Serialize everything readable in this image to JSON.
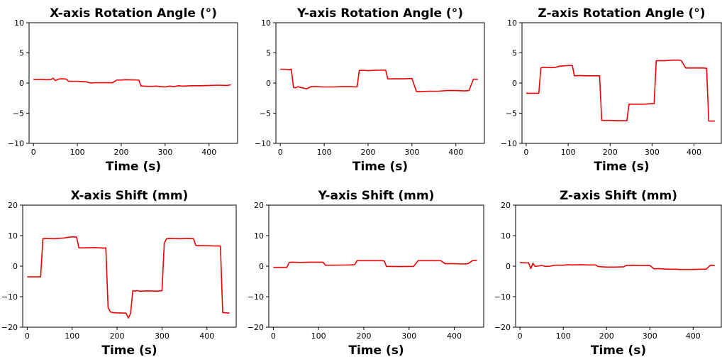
{
  "colors": {
    "series": "#ee0000",
    "axes": "#000000",
    "background": "#ffffff"
  },
  "chart_data": [
    {
      "type": "line",
      "title": "X-axis Rotation Angle (°)",
      "xlabel": "Time (s)",
      "ylabel": "",
      "xlim": [
        -10,
        465
      ],
      "ylim": [
        -10,
        10
      ],
      "xticks": [
        0,
        100,
        200,
        300,
        400
      ],
      "yticks": [
        -10,
        -5,
        0,
        5,
        10
      ],
      "ytick_labels": [
        "−10",
        "−5",
        "0",
        "5",
        "10"
      ],
      "grid": false,
      "series": [
        {
          "x": [
            0,
            10,
            20,
            30,
            40,
            45,
            50,
            55,
            60,
            70,
            75,
            80,
            100,
            110,
            120,
            130,
            140,
            160,
            180,
            190,
            200,
            210,
            240,
            245,
            250,
            260,
            270,
            280,
            290,
            300,
            310,
            320,
            330,
            340,
            360,
            380,
            400,
            420,
            440,
            450
          ],
          "y": [
            0.6,
            0.6,
            0.6,
            0.55,
            0.6,
            0.8,
            0.4,
            0.6,
            0.7,
            0.7,
            0.65,
            0.3,
            0.3,
            0.25,
            0.2,
            0.0,
            0.05,
            0.05,
            0.05,
            0.5,
            0.5,
            0.55,
            0.5,
            -0.5,
            -0.5,
            -0.55,
            -0.55,
            -0.5,
            -0.6,
            -0.65,
            -0.5,
            -0.6,
            -0.45,
            -0.5,
            -0.45,
            -0.45,
            -0.4,
            -0.35,
            -0.4,
            -0.3
          ]
        }
      ]
    },
    {
      "type": "line",
      "title": "Y-axis Rotation Angle (°)",
      "xlabel": "Time (s)",
      "ylabel": "",
      "xlim": [
        -10,
        465
      ],
      "ylim": [
        -10,
        10
      ],
      "xticks": [
        0,
        100,
        200,
        300,
        400
      ],
      "yticks": [
        -10,
        -5,
        0,
        5,
        10
      ],
      "ytick_labels": [
        "−10",
        "−5",
        "0",
        "5",
        "10"
      ],
      "grid": false,
      "series": [
        {
          "x": [
            0,
            10,
            20,
            25,
            30,
            35,
            40,
            50,
            60,
            70,
            80,
            100,
            120,
            140,
            160,
            175,
            180,
            190,
            200,
            210,
            240,
            245,
            260,
            280,
            300,
            310,
            320,
            340,
            360,
            380,
            400,
            420,
            430,
            440,
            450
          ],
          "y": [
            2.3,
            2.3,
            2.2,
            2.3,
            -0.7,
            -0.8,
            -0.6,
            -0.8,
            -0.95,
            -0.6,
            -0.6,
            -0.65,
            -0.65,
            -0.6,
            -0.6,
            -0.65,
            2.1,
            2.1,
            2.05,
            2.1,
            2.15,
            0.7,
            0.7,
            0.7,
            0.75,
            -1.4,
            -1.4,
            -1.35,
            -1.35,
            -1.25,
            -1.25,
            -1.3,
            -1.25,
            0.65,
            0.6
          ]
        }
      ]
    },
    {
      "type": "line",
      "title": "Z-axis Rotation Angle (°)",
      "xlabel": "Time (s)",
      "ylabel": "",
      "xlim": [
        -10,
        465
      ],
      "ylim": [
        -10,
        10
      ],
      "xticks": [
        0,
        100,
        200,
        300,
        400
      ],
      "yticks": [
        -10,
        -5,
        0,
        5,
        10
      ],
      "ytick_labels": [
        "−10",
        "−5",
        "0",
        "5",
        "10"
      ],
      "grid": false,
      "series": [
        {
          "x": [
            0,
            10,
            20,
            30,
            35,
            40,
            60,
            70,
            80,
            100,
            110,
            115,
            130,
            140,
            150,
            170,
            175,
            180,
            200,
            220,
            240,
            245,
            260,
            280,
            300,
            305,
            310,
            330,
            350,
            365,
            370,
            380,
            400,
            420,
            430,
            435,
            450
          ],
          "y": [
            -1.7,
            -1.7,
            -1.7,
            -1.7,
            2.5,
            2.6,
            2.55,
            2.6,
            2.8,
            2.9,
            2.9,
            1.2,
            1.25,
            1.2,
            1.2,
            1.2,
            1.2,
            -6.2,
            -6.2,
            -6.25,
            -6.25,
            -3.5,
            -3.5,
            -3.5,
            -3.4,
            -3.4,
            3.7,
            3.7,
            3.8,
            3.8,
            3.7,
            2.5,
            2.5,
            2.5,
            2.45,
            -6.3,
            -6.3
          ]
        }
      ]
    },
    {
      "type": "line",
      "title": "X-axis Shift  (mm)",
      "xlabel": "Time (s)",
      "ylabel": "",
      "xlim": [
        -10,
        465
      ],
      "ylim": [
        -20,
        20
      ],
      "xticks": [
        0,
        100,
        200,
        300,
        400
      ],
      "yticks": [
        -20,
        -10,
        0,
        10,
        20
      ],
      "ytick_labels": [
        "−20",
        "−10",
        "0",
        "10",
        "20"
      ],
      "grid": false,
      "series": [
        {
          "x": [
            0,
            10,
            20,
            30,
            35,
            40,
            60,
            80,
            100,
            110,
            115,
            130,
            150,
            170,
            175,
            180,
            185,
            190,
            200,
            220,
            225,
            230,
            235,
            240,
            245,
            250,
            270,
            290,
            300,
            305,
            310,
            320,
            340,
            360,
            370,
            375,
            380,
            400,
            420,
            430,
            435,
            450
          ],
          "y": [
            -3.5,
            -3.5,
            -3.5,
            -3.5,
            9,
            9.1,
            9,
            9.2,
            9.6,
            9.5,
            6.0,
            6.0,
            6.1,
            5.9,
            6.0,
            -13.5,
            -15,
            -15.2,
            -15.3,
            -15.4,
            -17,
            -15.5,
            -8,
            -8.2,
            -8.0,
            -8.2,
            -8.1,
            -8.2,
            -8.0,
            7.5,
            9,
            9.1,
            9.0,
            9.1,
            9.0,
            6.8,
            6.7,
            6.7,
            6.6,
            6.6,
            -15.2,
            -15.4
          ]
        }
      ]
    },
    {
      "type": "line",
      "title": "Y-axis Shift (mm)",
      "xlabel": "Time (s)",
      "ylabel": "",
      "xlim": [
        -10,
        465
      ],
      "ylim": [
        -20,
        20
      ],
      "xticks": [
        0,
        100,
        200,
        300,
        400
      ],
      "yticks": [
        -20,
        -10,
        0,
        10,
        20
      ],
      "ytick_labels": [
        "−20",
        "−10",
        "0",
        "10",
        "20"
      ],
      "grid": false,
      "series": [
        {
          "x": [
            0,
            10,
            20,
            30,
            35,
            40,
            60,
            80,
            100,
            110,
            115,
            130,
            150,
            170,
            180,
            185,
            200,
            220,
            240,
            245,
            250,
            260,
            280,
            300,
            310,
            320,
            340,
            360,
            370,
            380,
            400,
            420,
            430,
            440,
            450
          ],
          "y": [
            -0.4,
            -0.4,
            -0.4,
            -0.4,
            1.2,
            1.3,
            1.2,
            1.3,
            1.3,
            1.3,
            0.3,
            0.3,
            0.35,
            0.4,
            0.5,
            1.8,
            1.8,
            1.8,
            1.8,
            1.7,
            -0.1,
            -0.1,
            -0.15,
            -0.1,
            -0.1,
            1.8,
            1.8,
            1.8,
            1.8,
            0.8,
            0.8,
            0.7,
            0.8,
            1.8,
            1.9
          ]
        }
      ]
    },
    {
      "type": "line",
      "title": "Z-axis Shift (mm)",
      "xlabel": "Time (s)",
      "ylabel": "",
      "xlim": [
        -10,
        465
      ],
      "ylim": [
        -20,
        20
      ],
      "xticks": [
        0,
        100,
        200,
        300,
        400
      ],
      "yticks": [
        -20,
        -10,
        0,
        10,
        20
      ],
      "ytick_labels": [
        "−20",
        "−10",
        "0",
        "10",
        "20"
      ],
      "grid": false,
      "series": [
        {
          "x": [
            0,
            10,
            20,
            25,
            30,
            35,
            40,
            50,
            60,
            70,
            80,
            100,
            110,
            120,
            140,
            160,
            175,
            180,
            190,
            200,
            220,
            240,
            245,
            260,
            280,
            300,
            310,
            320,
            340,
            360,
            370,
            380,
            400,
            420,
            430,
            440,
            450
          ],
          "y": [
            1.2,
            1.1,
            1.1,
            -0.8,
            1.0,
            -0.1,
            0.0,
            0.2,
            -0.1,
            0.0,
            0.3,
            0.3,
            0.5,
            0.4,
            0.5,
            0.4,
            0.4,
            -0.1,
            -0.2,
            -0.3,
            -0.3,
            -0.2,
            0.2,
            0.3,
            0.2,
            0.2,
            -0.9,
            -0.8,
            -1.0,
            -1.0,
            -1.1,
            -1.1,
            -1.1,
            -1.0,
            -1.0,
            0.3,
            0.2
          ]
        }
      ]
    }
  ]
}
